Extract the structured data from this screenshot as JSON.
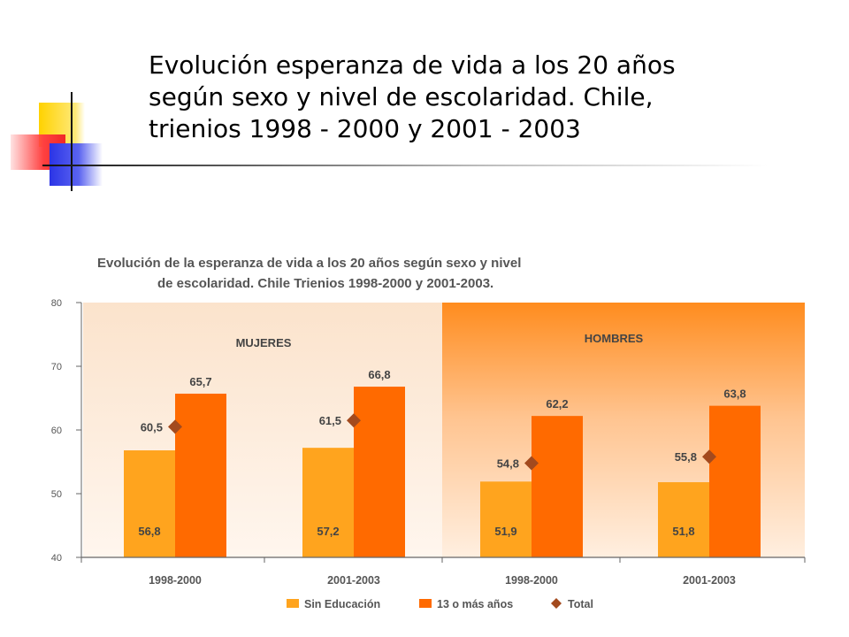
{
  "slide": {
    "title": "Evolución esperanza de vida a los 20 años según sexo y nivel de escolaridad. Chile, trienios 1998 - 2000 y 2001 - 2003"
  },
  "chart_data": {
    "type": "bar",
    "title_lines": [
      "Evolución de la esperanza de vida a los 20 años según sexo y nivel",
      "de escolaridad. Chile Trienios 1998-2000 y 2001-2003."
    ],
    "ylim": [
      40,
      80
    ],
    "yticks": [
      "40",
      "50",
      "60",
      "70",
      "80"
    ],
    "categories": [
      "1998-2000",
      "2001-2003",
      "1998-2000",
      "2001-2003"
    ],
    "panels": [
      "MUJERES",
      "HOMBRES"
    ],
    "series": [
      {
        "name": "Sin Educación",
        "values": [
          56.8,
          57.2,
          51.9,
          51.8
        ],
        "labels": [
          "56,8",
          "57,2",
          "51,9",
          "51,8"
        ],
        "color": "#FFA41E"
      },
      {
        "name": "13 o más años",
        "values": [
          65.7,
          66.8,
          62.2,
          63.8
        ],
        "labels": [
          "65,7",
          "66,8",
          "62,2",
          "63,8"
        ],
        "color": "#FF6A00"
      },
      {
        "name": "Total",
        "values": [
          60.5,
          61.5,
          54.8,
          55.8
        ],
        "labels": [
          "60,5",
          "61,5",
          "54,8",
          "55,8"
        ],
        "color": "#A34A1E"
      }
    ],
    "colors": {
      "panel_mujeres_top": "#FBE3CC",
      "panel_mujeres_bottom": "#FFF6EE",
      "panel_hombres_top": "#FF8C1E",
      "panel_hombres_bottom": "#FFEFE0"
    }
  }
}
